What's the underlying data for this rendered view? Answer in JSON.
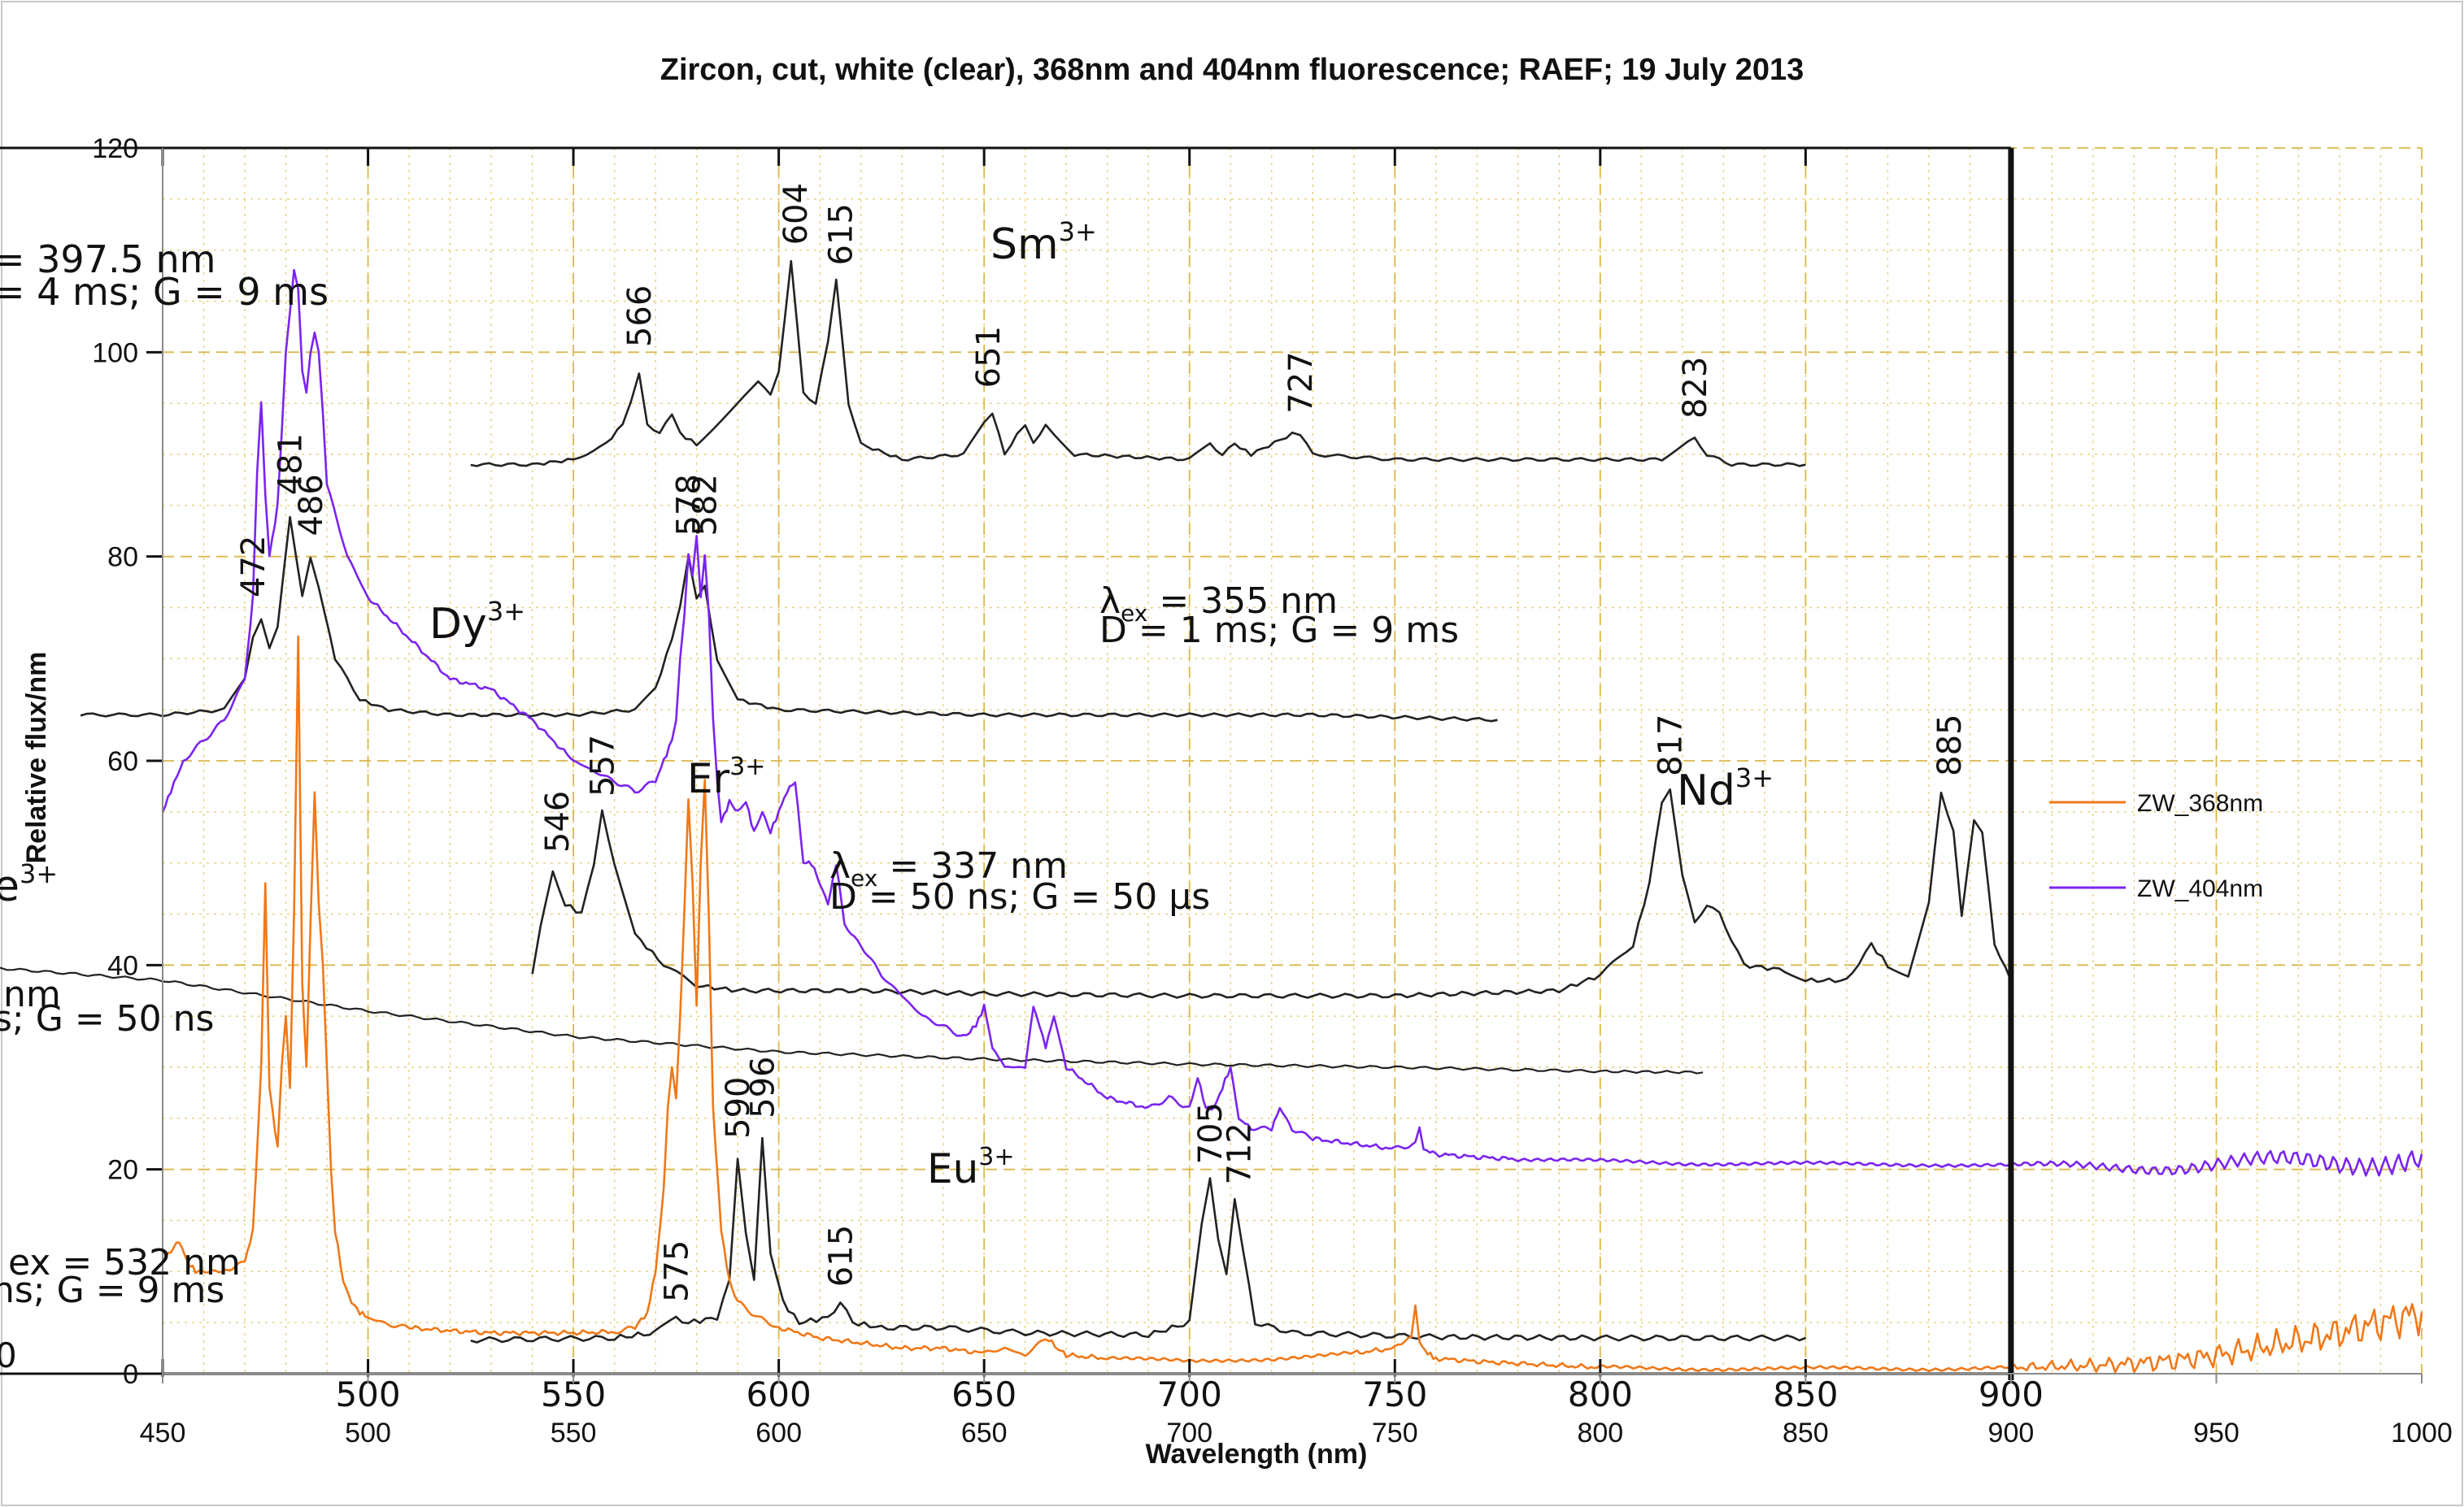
{
  "chart_data": {
    "type": "line",
    "title": "Zircon, cut, white (clear), 368nm and 404nm fluorescence; RAEF; 19 July 2013",
    "xlabel": "Wavelength (nm)",
    "ylabel": "Relative flux/nm",
    "xlim": [
      450,
      1000
    ],
    "ylim": [
      0,
      120
    ],
    "x_ticks": [
      "450",
      "500",
      "550",
      "600",
      "650",
      "700",
      "750",
      "800",
      "850",
      "900",
      "950",
      "1000"
    ],
    "y_ticks": [
      "0",
      "20",
      "40",
      "60",
      "80",
      "100",
      "120"
    ],
    "grid": true,
    "legend_position": "right",
    "series": [
      {
        "name": "ZW_368nm",
        "color": "#f07818",
        "x": [
          450,
          452,
          454,
          456,
          458,
          462,
          466,
          470,
          472,
          474,
          475,
          476,
          478,
          479,
          480,
          481,
          482,
          483,
          484,
          485,
          486,
          487,
          488,
          489,
          490,
          491,
          492,
          494,
          496,
          498,
          500,
          505,
          510,
          520,
          530,
          540,
          550,
          560,
          565,
          568,
          570,
          572,
          573,
          574,
          575,
          576,
          577,
          578,
          579,
          580,
          581,
          582,
          583,
          584,
          586,
          588,
          590,
          595,
          600,
          610,
          620,
          630,
          640,
          650,
          655,
          660,
          665,
          668,
          670,
          680,
          700,
          720,
          740,
          750,
          754,
          755,
          756,
          758,
          760,
          770,
          780,
          790,
          800,
          820,
          840,
          860,
          880,
          900,
          910,
          920,
          930,
          940,
          950,
          960,
          970,
          980,
          990,
          1000
        ],
        "y": [
          11,
          12,
          13,
          11,
          10,
          10,
          10,
          11,
          14,
          30,
          48,
          28,
          22,
          30,
          35,
          28,
          45,
          72,
          38,
          30,
          44,
          57,
          46,
          40,
          30,
          20,
          14,
          9,
          7,
          6,
          5.5,
          4.8,
          4.5,
          4.2,
          4.0,
          4.0,
          4.0,
          4.1,
          4.5,
          6,
          10,
          18,
          26,
          30,
          27,
          35,
          45,
          56,
          48,
          36,
          50,
          58,
          44,
          26,
          14,
          9,
          7,
          5.5,
          4.5,
          3.5,
          3.0,
          2.5,
          2.5,
          2.0,
          2.5,
          1.8,
          3.5,
          2.5,
          1.8,
          1.5,
          1.2,
          1.5,
          2.0,
          2.5,
          3.5,
          6.5,
          3.0,
          2.0,
          1.5,
          1.2,
          1.0,
          0.8,
          0.6,
          0.5,
          0.5,
          0.5,
          0.5,
          0.6,
          0.7,
          0.8,
          1.0,
          1.3,
          1.8,
          2.5,
          3.2,
          4.0,
          5.0,
          6.0
        ]
      },
      {
        "name": "ZW_404nm",
        "color": "#7a24f0",
        "x": [
          450,
          452,
          455,
          460,
          465,
          470,
          472,
          473,
          474,
          475,
          476,
          478,
          479,
          480,
          481,
          482,
          483,
          484,
          485,
          486,
          487,
          488,
          489,
          490,
          495,
          500,
          510,
          520,
          530,
          540,
          550,
          555,
          560,
          565,
          570,
          572,
          574,
          575,
          576,
          577,
          578,
          579,
          580,
          581,
          582,
          583,
          584,
          585,
          586,
          588,
          590,
          592,
          594,
          596,
          598,
          600,
          602,
          604,
          606,
          608,
          610,
          612,
          614,
          616,
          620,
          625,
          630,
          635,
          640,
          645,
          648,
          650,
          652,
          655,
          660,
          662,
          665,
          667,
          670,
          680,
          690,
          695,
          700,
          702,
          704,
          706,
          708,
          710,
          712,
          715,
          720,
          722,
          725,
          730,
          740,
          750,
          755,
          756,
          757,
          760,
          770,
          780,
          800,
          820,
          840,
          860,
          880,
          900,
          920,
          940,
          960,
          980,
          1000
        ],
        "y": [
          55,
          57,
          60,
          62,
          64,
          68,
          76,
          88,
          95,
          86,
          80,
          85,
          92,
          100,
          104,
          108,
          106,
          98,
          96,
          100,
          102,
          100,
          94,
          87,
          80,
          76,
          72,
          68,
          67,
          64,
          60,
          59,
          58,
          57,
          58,
          60,
          62,
          64,
          70,
          74,
          80,
          78,
          82,
          76,
          80,
          74,
          64,
          58,
          54,
          56,
          55,
          56,
          53,
          55,
          53,
          55,
          57,
          58,
          50,
          50,
          48,
          46,
          50,
          44,
          42,
          39,
          37,
          35,
          34,
          33,
          34,
          36,
          32,
          30,
          30,
          36,
          32,
          35,
          30,
          27,
          26,
          27,
          26,
          29,
          26,
          26,
          28,
          30,
          25,
          24,
          24,
          26,
          24,
          23,
          22.5,
          22.0,
          22.5,
          24,
          22,
          21.5,
          21.2,
          21.0,
          20.8,
          20.6,
          20.6,
          20.5,
          20.5,
          20.4,
          20.3,
          20.3,
          20.5,
          20.8,
          21.5
        ]
      }
    ],
    "overlay": {
      "sm": {
        "label": "Sm",
        "sup": "3+",
        "header_line1": "= 397.5 nm",
        "header_line2": "= 4 ms; G = 9 ms",
        "peaks": [
          "566",
          "604",
          "615",
          "651",
          "727",
          "823"
        ]
      },
      "dy": {
        "label": "Dy",
        "sup": "3+",
        "header_lambda": "λ",
        "header_sub": "ex",
        "header_line1": "= 355 nm",
        "header_line2": "D = 1 ms; G = 9 ms",
        "peaks": [
          "472",
          "481",
          "486",
          "578",
          "582"
        ]
      },
      "er": {
        "label": "Er",
        "sup": "3+",
        "peaks": [
          "546",
          "557"
        ]
      },
      "nd": {
        "label": "Nd",
        "sup": "3+",
        "header_lambda": "λ",
        "header_sub": "ex",
        "header_line1": "= 337 nm",
        "header_line2": "D = 50 ns; G = 50 µs",
        "peaks": [
          "817",
          "885"
        ]
      },
      "ce": {
        "label": "e",
        "sup": "3+",
        "header_line1": "nm",
        "header_line2": "s; G = 50 ns"
      },
      "eu": {
        "label": "Eu",
        "sup": "3+",
        "header_line1": "ex = 532 nm",
        "header_line2": "ns; G = 9 ms",
        "peaks": [
          "575",
          "590",
          "596",
          "615",
          "705",
          "712"
        ]
      },
      "partial_tick": "0"
    }
  }
}
